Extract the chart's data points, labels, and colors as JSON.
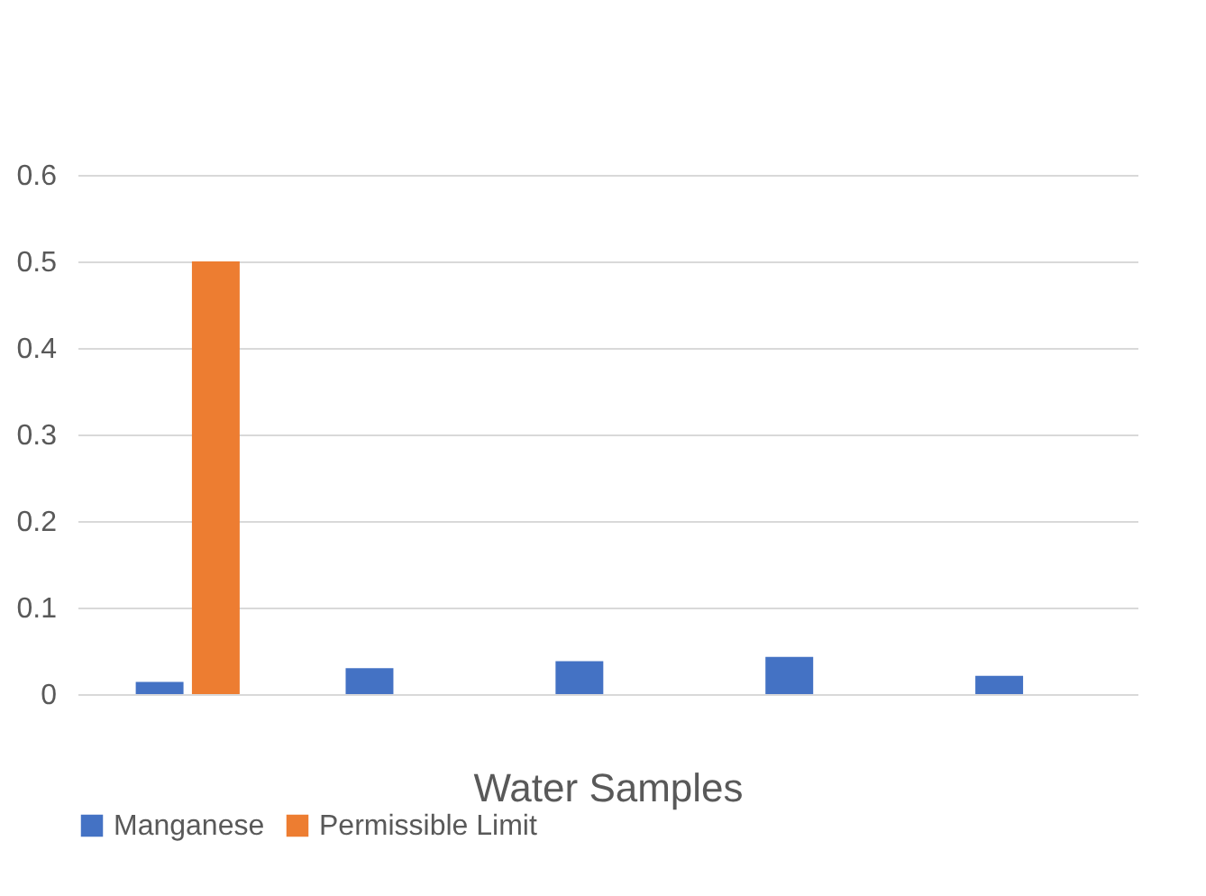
{
  "chart_data": {
    "type": "bar",
    "xlabel": "Water Samples",
    "categories": [
      null,
      null,
      null,
      null,
      null
    ],
    "series": [
      {
        "name": "Manganese",
        "color": "#4472c4",
        "values": [
          0.014,
          0.03,
          0.038,
          0.043,
          0.021
        ]
      },
      {
        "name": "Permissible Limit",
        "color": "#ed7d31",
        "values": [
          0.5,
          null,
          null,
          null,
          null
        ]
      }
    ],
    "ylim": [
      0,
      0.6
    ],
    "yticks": [
      0,
      0.1,
      0.2,
      0.3,
      0.4,
      0.5,
      0.6
    ],
    "grid": "y",
    "legend": "bottom"
  }
}
